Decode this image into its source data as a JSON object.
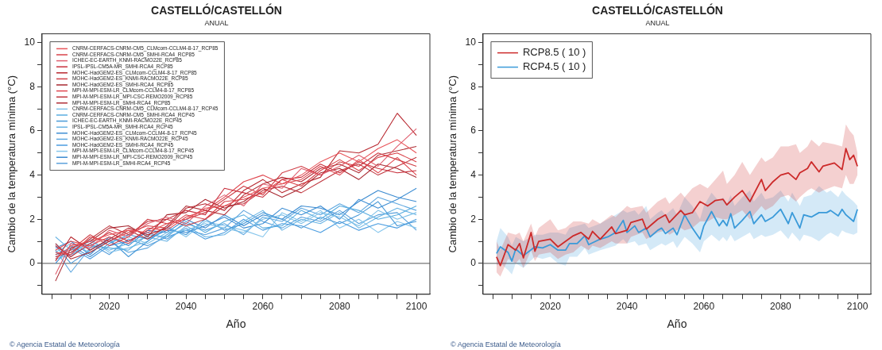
{
  "chart_data": [
    {
      "type": "line",
      "title": "CASTELLÓ/CASTELLÓN",
      "subtitle": "ANUAL",
      "xlabel": "Año",
      "ylabel": "Cambio de la temperatura mínima (°C)",
      "x": [
        2006,
        2010,
        2015,
        2020,
        2025,
        2030,
        2035,
        2040,
        2045,
        2050,
        2055,
        2060,
        2065,
        2070,
        2075,
        2080,
        2085,
        2090,
        2095,
        2100
      ],
      "xlim": [
        2002.5,
        2103.5
      ],
      "ylim": [
        -1.4,
        10.4
      ],
      "xticks": [
        {
          "value": 2005,
          "label": null
        },
        {
          "value": 2010,
          "label": null
        },
        {
          "value": 2015,
          "label": null
        },
        2020,
        {
          "value": 2025,
          "label": null
        },
        {
          "value": 2030,
          "label": null
        },
        {
          "value": 2035,
          "label": null
        },
        2040,
        {
          "value": 2045,
          "label": null
        },
        {
          "value": 2050,
          "label": null
        },
        {
          "value": 2055,
          "label": null
        },
        2060,
        {
          "value": 2065,
          "label": null
        },
        {
          "value": 2070,
          "label": null
        },
        {
          "value": 2075,
          "label": null
        },
        2080,
        {
          "value": 2085,
          "label": null
        },
        {
          "value": 2090,
          "label": null
        },
        {
          "value": 2095,
          "label": null
        },
        2100
      ],
      "yticks": [
        {
          "value": -1,
          "label": null
        },
        0,
        {
          "value": 1,
          "label": null
        },
        2,
        {
          "value": 3,
          "label": null
        },
        4,
        {
          "value": 5,
          "label": null
        },
        6,
        {
          "value": 7,
          "label": null
        },
        8,
        {
          "value": 9,
          "label": null
        },
        10
      ],
      "ref_lines": [
        {
          "axis": "y",
          "value": 0,
          "color": "#555555"
        }
      ],
      "legend": "top left",
      "annotations": [
        "© Agencia Estatal de Meteorología"
      ],
      "series": [
        {
          "name": "CNRM-CERFACS-CNRM-CM5_CLMcom-CCLM4-8-17_RCP85",
          "color": "#e8555a",
          "values": [
            0.2,
            0.8,
            1.0,
            1.3,
            1.5,
            1.4,
            1.8,
            2.0,
            2.5,
            2.6,
            3.0,
            3.4,
            3.6,
            4.0,
            4.6,
            5.0,
            4.6,
            5.2,
            5.6,
            5.0
          ]
        },
        {
          "name": "CNRM-CERFACS-CNRM-CM5_SMHI-RCA4_RCP85",
          "color": "#d9434a",
          "values": [
            0.5,
            0.4,
            1.2,
            1.0,
            1.4,
            1.7,
            1.6,
            2.2,
            2.0,
            2.8,
            2.9,
            3.2,
            3.8,
            3.5,
            4.2,
            4.7,
            4.2,
            4.8,
            5.0,
            4.6
          ]
        },
        {
          "name": "ICHEC-EC-EARTH_KNMI-RACMO22E_RCP85",
          "color": "#e06070",
          "values": [
            -0.5,
            0.9,
            0.7,
            1.5,
            1.2,
            1.8,
            2.1,
            1.8,
            2.6,
            3.1,
            2.6,
            3.6,
            3.4,
            4.3,
            4.0,
            4.4,
            4.9,
            4.4,
            5.3,
            6.1
          ]
        },
        {
          "name": "IPSL-IPSL-CM5A-MR_SMHI-RCA4_RCP85",
          "color": "#c8303c",
          "values": [
            0.8,
            0.3,
            0.9,
            1.4,
            1.0,
            1.5,
            2.0,
            2.4,
            2.2,
            3.4,
            3.2,
            3.0,
            3.8,
            3.9,
            4.5,
            4.1,
            4.6,
            4.3,
            4.1,
            4.2
          ]
        },
        {
          "name": "MOHC-HadGEM2-ES_CLMcom-CCLM4-8-17_RCP85",
          "color": "#b82830",
          "values": [
            0.1,
            1.2,
            0.6,
            1.1,
            1.6,
            1.3,
            1.6,
            2.5,
            2.7,
            2.4,
            3.3,
            3.8,
            3.2,
            3.6,
            3.9,
            5.1,
            5.0,
            5.4,
            6.8,
            5.8
          ]
        },
        {
          "name": "MOHC-HadGEM2-ES_KNMI-RACMO22E_RCP85",
          "color": "#d04048",
          "values": [
            0.4,
            0.6,
            1.3,
            0.8,
            1.2,
            2.0,
            1.8,
            2.0,
            2.3,
            2.9,
            3.5,
            3.1,
            4.1,
            4.4,
            4.0,
            4.6,
            4.4,
            5.0,
            4.7,
            4.4
          ]
        },
        {
          "name": "MOHC-HadGEM2-ES_SMHI-RCA4_RCP85",
          "color": "#a82830",
          "values": [
            -0.8,
            0.7,
            1.0,
            1.6,
            1.7,
            1.2,
            2.2,
            2.3,
            2.9,
            2.5,
            2.8,
            3.4,
            3.0,
            3.4,
            4.1,
            4.3,
            3.8,
            4.5,
            4.3,
            3.9
          ]
        },
        {
          "name": "MPI-M-MPI-ESM-LR_CLMcom-CCLM4-8-17_RCP85",
          "color": "#e04850",
          "values": [
            0.6,
            1.0,
            0.8,
            1.2,
            0.9,
            1.6,
            1.5,
            2.1,
            2.4,
            3.0,
            3.7,
            4.0,
            3.6,
            3.8,
            4.4,
            4.0,
            4.7,
            4.1,
            4.8,
            4.0
          ]
        },
        {
          "name": "MPI-M-MPI-ESM-LR_MPI-CSC-REMO2009_RCP85",
          "color": "#c03840",
          "values": [
            0.3,
            0.5,
            1.1,
            1.7,
            1.3,
            1.9,
            2.0,
            1.7,
            2.0,
            2.6,
            2.7,
            3.3,
            3.5,
            3.2,
            3.7,
            4.2,
            4.5,
            4.0,
            4.4,
            4.8
          ]
        },
        {
          "name": "MPI-M-MPI-ESM-LR_SMHI-RCA4_RCP85",
          "color": "#b03038",
          "values": [
            0.9,
            0.2,
            0.5,
            1.0,
            1.5,
            1.1,
            1.7,
            2.6,
            2.4,
            2.2,
            3.1,
            3.6,
            3.9,
            3.7,
            4.3,
            4.5,
            4.1,
            4.9,
            5.1,
            5.3
          ]
        },
        {
          "name": "CNRM-CERFACS-CNRM-CM5_CLMcom-CCLM4-8-17_RCP45",
          "color": "#7ec0e8",
          "values": [
            0.5,
            0.9,
            0.5,
            1.0,
            1.2,
            0.9,
            1.4,
            1.5,
            1.8,
            1.6,
            1.4,
            2.0,
            2.2,
            1.8,
            2.3,
            2.1,
            1.7,
            2.4,
            2.0,
            2.3
          ]
        },
        {
          "name": "CNRM-CERFACS-CNRM-CM5_SMHI-RCA4_RCP45",
          "color": "#5aaee0",
          "values": [
            0.2,
            0.4,
            0.8,
            0.7,
            0.6,
            1.3,
            1.2,
            1.9,
            1.4,
            1.9,
            2.2,
            1.6,
            1.7,
            2.4,
            2.0,
            2.6,
            2.4,
            2.0,
            2.2,
            2.6
          ]
        },
        {
          "name": "ICHEC-EC-EARTH_KNMI-RACMO22E_RCP45",
          "color": "#4a9ad8",
          "values": [
            0.8,
            0.0,
            0.6,
            1.1,
            0.3,
            1.0,
            1.6,
            1.3,
            2.0,
            1.5,
            1.8,
            2.3,
            2.0,
            1.6,
            2.1,
            1.8,
            2.2,
            2.8,
            1.7,
            1.9
          ]
        },
        {
          "name": "IPSL-IPSL-CM5A-MR_SMHI-RCA4_RCP45",
          "color": "#6ab4e4",
          "values": [
            1.2,
            0.6,
            1.0,
            0.6,
            0.9,
            1.2,
            1.0,
            1.7,
            1.2,
            1.3,
            1.9,
            2.4,
            1.5,
            2.0,
            1.8,
            2.3,
            1.6,
            2.1,
            2.5,
            2.2
          ]
        },
        {
          "name": "MOHC-HadGEM2-ES_CLMcom-CCLM4-8-17_RCP45",
          "color": "#3f8fd4",
          "values": [
            0.0,
            0.8,
            0.3,
            0.9,
            1.3,
            1.1,
            1.5,
            1.4,
            1.7,
            2.1,
            1.6,
            1.8,
            2.5,
            2.2,
            2.6,
            2.0,
            2.9,
            2.5,
            2.9,
            3.4
          ]
        },
        {
          "name": "MOHC-HadGEM2-ES_KNMI-RACMO22E_RCP45",
          "color": "#5fa8e0",
          "values": [
            0.6,
            -0.4,
            0.7,
            1.0,
            0.5,
            0.7,
            1.3,
            1.8,
            1.5,
            1.8,
            1.3,
            2.1,
            1.9,
            2.5,
            2.2,
            2.7,
            2.3,
            3.0,
            2.7,
            2.4
          ]
        },
        {
          "name": "MOHC-HadGEM2-ES_SMHI-RCA4_RCP45",
          "color": "#4b9de0",
          "values": [
            0.4,
            0.7,
            0.2,
            0.8,
            1.0,
            1.4,
            1.1,
            1.6,
            1.1,
            1.4,
            2.0,
            1.5,
            1.8,
            1.7,
            1.4,
            1.9,
            1.5,
            1.8,
            1.6,
            2.0
          ]
        },
        {
          "name": "MPI-M-MPI-ESM-LR_CLMcom-CCLM4-8-17_RCP45",
          "color": "#86c6ec",
          "values": [
            0.9,
            0.3,
            1.1,
            0.5,
            0.7,
            1.0,
            1.7,
            1.2,
            1.9,
            1.7,
            1.5,
            1.2,
            2.3,
            1.9,
            2.4,
            1.6,
            2.0,
            1.4,
            1.9,
            1.6
          ]
        },
        {
          "name": "MPI-M-MPI-ESM-LR_MPI-CSC-REMO2009_RCP45",
          "color": "#3a8ad0",
          "values": [
            0.7,
            1.0,
            0.4,
            1.2,
            0.8,
            1.5,
            1.4,
            2.0,
            1.6,
            2.2,
            1.7,
            2.2,
            2.0,
            2.6,
            2.5,
            2.2,
            2.8,
            3.3,
            3.0,
            2.8
          ]
        },
        {
          "name": "MPI-M-MPI-ESM-LR_SMHI-RCA4_RCP45",
          "color": "#5ca2dc",
          "values": [
            0.3,
            0.5,
            0.9,
            0.4,
            1.1,
            0.8,
            1.2,
            1.5,
            1.3,
            1.6,
            2.4,
            1.9,
            1.6,
            2.1,
            1.9,
            2.4,
            1.8,
            2.2,
            2.3,
            1.5
          ]
        }
      ]
    },
    {
      "type": "line",
      "title": "CASTELLÓ/CASTELLÓN",
      "subtitle": "ANUAL",
      "xlabel": "Año",
      "ylabel": "Cambio de la temperatura mínima (°C)",
      "xlim": [
        2002.5,
        2103.5
      ],
      "ylim": [
        -1.4,
        10.4
      ],
      "xticks": [
        {
          "value": 2005,
          "label": null
        },
        {
          "value": 2010,
          "label": null
        },
        {
          "value": 2015,
          "label": null
        },
        2020,
        {
          "value": 2025,
          "label": null
        },
        {
          "value": 2030,
          "label": null
        },
        {
          "value": 2035,
          "label": null
        },
        2040,
        {
          "value": 2045,
          "label": null
        },
        {
          "value": 2050,
          "label": null
        },
        {
          "value": 2055,
          "label": null
        },
        2060,
        {
          "value": 2065,
          "label": null
        },
        {
          "value": 2070,
          "label": null
        },
        {
          "value": 2075,
          "label": null
        },
        2080,
        {
          "value": 2085,
          "label": null
        },
        {
          "value": 2090,
          "label": null
        },
        {
          "value": 2095,
          "label": null
        },
        2100
      ],
      "yticks": [
        {
          "value": -1,
          "label": null
        },
        0,
        {
          "value": 1,
          "label": null
        },
        2,
        {
          "value": 3,
          "label": null
        },
        4,
        {
          "value": 5,
          "label": null
        },
        6,
        {
          "value": 7,
          "label": null
        },
        8,
        {
          "value": 9,
          "label": null
        },
        10
      ],
      "ref_lines": [
        {
          "axis": "y",
          "value": 0,
          "color": "#555555"
        }
      ],
      "legend": "top left",
      "annotations": [
        "© Agencia Estatal de Meteorología"
      ],
      "series": [
        {
          "name": "RCP8.5 ( 10 )",
          "color": "#cc2a2a",
          "x": [
            2006,
            2007,
            2009,
            2011,
            2012,
            2013,
            2015,
            2016,
            2017,
            2020,
            2022,
            2024,
            2026,
            2028,
            2030,
            2031,
            2033,
            2036,
            2037,
            2040,
            2041,
            2044,
            2045,
            2048,
            2050,
            2051,
            2054,
            2055,
            2057,
            2059,
            2061,
            2063,
            2065,
            2066,
            2068,
            2070,
            2072,
            2075,
            2076,
            2078,
            2080,
            2082,
            2084,
            2085,
            2087,
            2088,
            2090,
            2091,
            2094,
            2096,
            2097,
            2098,
            2099,
            2100
          ],
          "values": [
            0.3,
            -0.1,
            0.85,
            0.6,
            0.9,
            0.25,
            1.4,
            0.55,
            1.0,
            1.1,
            0.75,
            1.0,
            1.25,
            1.4,
            1.1,
            1.45,
            1.1,
            1.65,
            1.35,
            1.5,
            1.85,
            2.0,
            1.55,
            2.0,
            2.2,
            1.85,
            2.4,
            2.2,
            2.3,
            2.8,
            2.6,
            2.85,
            2.9,
            2.65,
            3.0,
            3.3,
            2.8,
            3.8,
            3.3,
            3.7,
            4.0,
            4.1,
            3.8,
            4.1,
            4.3,
            4.6,
            4.15,
            4.4,
            4.55,
            4.25,
            5.2,
            4.7,
            4.9,
            4.4
          ],
          "lower": [
            -0.4,
            -0.6,
            0.2,
            0.0,
            0.2,
            -0.2,
            0.6,
            0.1,
            0.4,
            0.5,
            0.2,
            0.4,
            0.5,
            0.8,
            0.6,
            0.8,
            0.7,
            1.0,
            0.9,
            0.9,
            1.2,
            1.4,
            1.1,
            1.4,
            1.5,
            1.3,
            1.6,
            1.5,
            1.6,
            1.9,
            1.9,
            2.1,
            2.0,
            2.0,
            2.2,
            2.4,
            2.0,
            2.6,
            2.4,
            2.6,
            3.0,
            3.1,
            2.8,
            3.0,
            3.3,
            3.4,
            3.2,
            3.3,
            3.5,
            3.4,
            4.0,
            3.6,
            3.6,
            4.0
          ],
          "upper": [
            1.0,
            0.6,
            1.4,
            1.3,
            1.4,
            1.0,
            1.8,
            1.2,
            1.6,
            2.0,
            1.5,
            1.6,
            1.9,
            1.9,
            1.8,
            2.0,
            1.8,
            2.2,
            2.1,
            2.6,
            2.5,
            2.6,
            2.3,
            2.8,
            3.0,
            2.7,
            3.2,
            3.0,
            3.4,
            3.6,
            3.4,
            3.8,
            4.2,
            3.6,
            4.0,
            4.6,
            4.0,
            4.8,
            4.6,
            4.8,
            5.3,
            5.3,
            5.4,
            5.0,
            5.3,
            5.6,
            5.3,
            5.5,
            5.4,
            5.3,
            6.3,
            6.0,
            5.8,
            5.0
          ]
        },
        {
          "name": "RCP4.5 ( 10 )",
          "color": "#3a9ad9",
          "x": [
            2006,
            2007,
            2009,
            2010,
            2011,
            2013,
            2016,
            2018,
            2020,
            2022,
            2024,
            2025,
            2027,
            2029,
            2030,
            2033,
            2035,
            2037,
            2039,
            2040,
            2042,
            2043,
            2045,
            2046,
            2048,
            2049,
            2050,
            2052,
            2053,
            2055,
            2057,
            2059,
            2060,
            2062,
            2064,
            2065,
            2066,
            2067,
            2068,
            2070,
            2072,
            2073,
            2075,
            2076,
            2078,
            2080,
            2082,
            2083,
            2085,
            2086,
            2088,
            2090,
            2092,
            2093,
            2095,
            2096,
            2097,
            2099,
            2100
          ],
          "values": [
            0.45,
            0.75,
            0.5,
            0.1,
            0.65,
            0.35,
            0.75,
            0.7,
            0.85,
            0.6,
            0.6,
            0.9,
            0.9,
            1.25,
            0.85,
            1.1,
            1.2,
            1.4,
            1.95,
            1.4,
            1.7,
            1.4,
            1.6,
            1.2,
            1.5,
            1.6,
            1.35,
            1.6,
            1.3,
            2.2,
            1.6,
            1.1,
            1.7,
            2.35,
            1.7,
            1.95,
            1.7,
            2.25,
            1.6,
            1.95,
            2.35,
            1.8,
            2.2,
            1.9,
            2.1,
            2.45,
            1.8,
            2.3,
            1.6,
            2.2,
            2.1,
            2.3,
            2.3,
            2.4,
            2.15,
            2.45,
            2.2,
            1.9,
            2.45
          ],
          "lower": [
            -0.1,
            0.0,
            -0.3,
            -0.5,
            0.0,
            -0.2,
            0.3,
            0.2,
            0.3,
            0.0,
            -0.1,
            0.3,
            0.3,
            0.7,
            0.4,
            0.6,
            0.7,
            0.8,
            1.1,
            0.9,
            1.0,
            0.8,
            0.9,
            0.6,
            0.8,
            0.9,
            0.8,
            1.0,
            0.7,
            1.2,
            0.9,
            0.5,
            1.0,
            1.3,
            1.0,
            1.2,
            1.0,
            1.3,
            1.0,
            1.2,
            1.4,
            1.1,
            1.3,
            1.2,
            1.3,
            1.5,
            1.1,
            1.4,
            1.0,
            1.3,
            1.2,
            1.0,
            1.3,
            1.4,
            1.2,
            1.5,
            1.4,
            1.3,
            1.4
          ],
          "upper": [
            1.0,
            1.6,
            1.2,
            0.8,
            1.2,
            1.0,
            1.3,
            1.3,
            1.4,
            1.4,
            1.3,
            1.6,
            1.7,
            1.8,
            1.6,
            1.8,
            2.0,
            2.2,
            2.4,
            2.3,
            2.4,
            2.2,
            2.6,
            2.0,
            2.3,
            2.4,
            2.2,
            2.5,
            2.2,
            3.0,
            2.6,
            2.0,
            2.6,
            3.2,
            2.8,
            3.0,
            2.7,
            3.1,
            2.6,
            3.0,
            3.3,
            2.8,
            3.2,
            2.9,
            3.0,
            3.3,
            2.8,
            3.2,
            2.6,
            3.0,
            3.1,
            3.5,
            3.2,
            3.3,
            3.0,
            3.3,
            3.1,
            2.8,
            2.6
          ]
        }
      ]
    }
  ]
}
